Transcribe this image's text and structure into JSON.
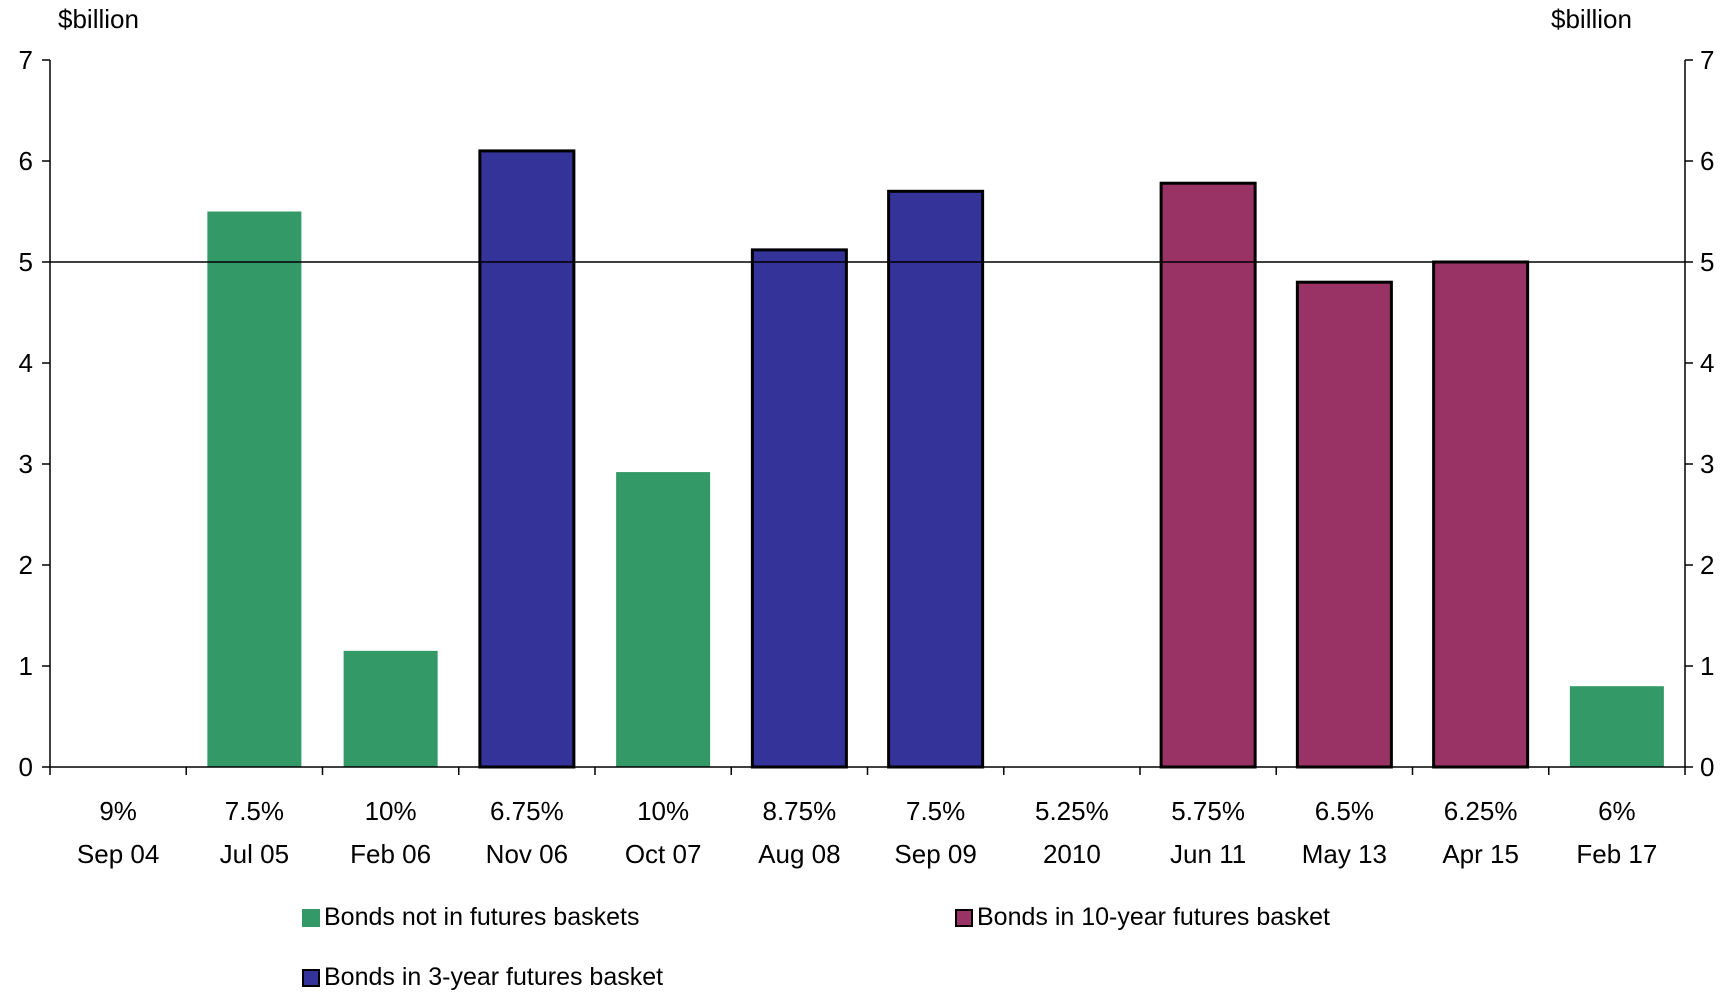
{
  "chart_data": {
    "type": "bar",
    "ylabel_left": "$billion",
    "ylabel_right": "$billion",
    "ylim": [
      0,
      7
    ],
    "yticks": [
      "0",
      "1",
      "2",
      "3",
      "4",
      "5",
      "6",
      "7"
    ],
    "reference_line": 5,
    "categories": [
      {
        "coupon": "9%",
        "date": "Sep 04"
      },
      {
        "coupon": "7.5%",
        "date": "Jul 05"
      },
      {
        "coupon": "10%",
        "date": "Feb 06"
      },
      {
        "coupon": "6.75%",
        "date": "Nov 06"
      },
      {
        "coupon": "10%",
        "date": "Oct 07"
      },
      {
        "coupon": "8.75%",
        "date": "Aug 08"
      },
      {
        "coupon": "7.5%",
        "date": "Sep 09"
      },
      {
        "coupon": "5.25%",
        "date": "2010"
      },
      {
        "coupon": "5.75%",
        "date": "Jun 11"
      },
      {
        "coupon": "6.5%",
        "date": "May 13"
      },
      {
        "coupon": "6.25%",
        "date": "Apr 15"
      },
      {
        "coupon": "6%",
        "date": "Feb 17"
      }
    ],
    "series": [
      {
        "name": "Bonds not in futures baskets",
        "color": "#339966",
        "outline": false,
        "values": [
          null,
          5.5,
          1.15,
          null,
          2.92,
          null,
          null,
          null,
          null,
          null,
          null,
          0.8
        ]
      },
      {
        "name": "Bonds in 3-year futures basket",
        "color": "#333399",
        "outline": true,
        "values": [
          null,
          null,
          null,
          6.1,
          null,
          5.12,
          5.7,
          null,
          null,
          null,
          null,
          null
        ]
      },
      {
        "name": "Bonds in 10-year futures basket",
        "color": "#993366",
        "outline": true,
        "values": [
          null,
          null,
          null,
          null,
          null,
          null,
          null,
          null,
          5.78,
          4.8,
          5.0,
          null
        ]
      }
    ],
    "legend": [
      {
        "label": "Bonds not in futures baskets",
        "color": "#339966"
      },
      {
        "label": "Bonds in 10-year futures basket",
        "color": "#993366"
      },
      {
        "label": "Bonds in 3-year futures basket",
        "color": "#333399"
      }
    ]
  }
}
